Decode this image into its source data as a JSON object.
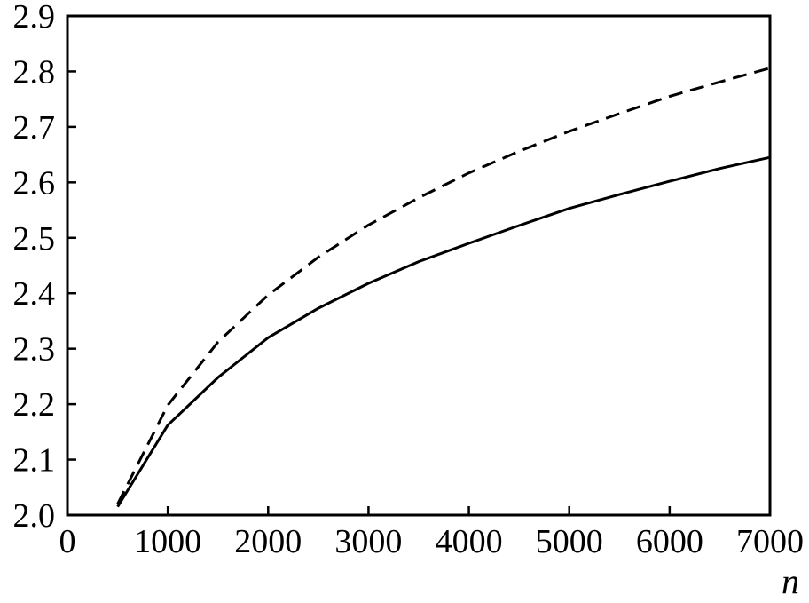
{
  "chart_data": {
    "type": "line",
    "title": "",
    "xlabel": "n",
    "ylabel": "",
    "xlim": [
      0,
      7000
    ],
    "ylim": [
      2.0,
      2.9
    ],
    "grid": false,
    "legend": "none",
    "x_ticks": [
      0,
      1000,
      2000,
      3000,
      4000,
      5000,
      6000,
      7000
    ],
    "x_tick_labels": [
      "0",
      "1000",
      "2000",
      "3000",
      "4000",
      "5000",
      "6000",
      "7000"
    ],
    "y_ticks": [
      2.0,
      2.1,
      2.2,
      2.3,
      2.4,
      2.5,
      2.6,
      2.7,
      2.8,
      2.9
    ],
    "y_tick_labels": [
      "2.0",
      "2.1",
      "2.2",
      "2.3",
      "2.4",
      "2.5",
      "2.6",
      "2.7",
      "2.8",
      "2.9"
    ],
    "series": [
      {
        "style": "solid",
        "color": "#000000",
        "x": [
          500,
          1000,
          1500,
          2000,
          2500,
          3000,
          3500,
          4000,
          4500,
          5000,
          5500,
          6000,
          6500,
          7000
        ],
        "y": [
          2.015,
          2.162,
          2.248,
          2.32,
          2.373,
          2.418,
          2.457,
          2.49,
          2.522,
          2.553,
          2.578,
          2.602,
          2.625,
          2.645
        ]
      },
      {
        "style": "dashed",
        "color": "#000000",
        "x": [
          500,
          1000,
          1500,
          2000,
          2500,
          3000,
          3500,
          4000,
          4500,
          5000,
          5500,
          6000,
          6500,
          7000
        ],
        "y": [
          2.02,
          2.198,
          2.312,
          2.397,
          2.465,
          2.523,
          2.572,
          2.617,
          2.656,
          2.692,
          2.724,
          2.755,
          2.781,
          2.806
        ]
      }
    ]
  }
}
